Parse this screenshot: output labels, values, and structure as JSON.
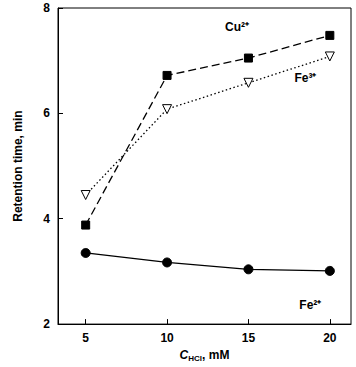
{
  "chart_data": {
    "type": "line",
    "xlabel": "CHCl, mM",
    "ylabel": "Retention time, min",
    "x": [
      5,
      10,
      15,
      20
    ],
    "xlim": [
      3.3,
      21.3
    ],
    "xticks": [
      5,
      10,
      15,
      20
    ],
    "ylim": [
      2,
      8
    ],
    "yticks": [
      2,
      4,
      6,
      8
    ],
    "grid": false,
    "series": [
      {
        "name": "Cu²⁺",
        "color": "#000000",
        "marker": "square",
        "line_style": "dashed",
        "values": [
          3.88,
          6.72,
          7.05,
          7.48
        ]
      },
      {
        "name": "Fe³⁺",
        "color": "#000000",
        "marker": "triangle-down-open",
        "line_style": "dotted",
        "values": [
          4.45,
          6.08,
          6.58,
          7.08
        ]
      },
      {
        "name": "Fe²⁺",
        "color": "#000000",
        "marker": "circle",
        "line_style": "solid",
        "values": [
          3.35,
          3.17,
          3.04,
          3.01
        ]
      }
    ],
    "annotations": [
      {
        "text": "Cu²⁺",
        "x": 14.3,
        "y": 7.64
      },
      {
        "text": "Fe³⁺",
        "x": 18.5,
        "y": 6.67
      },
      {
        "text": "Fe²⁺",
        "x": 18.8,
        "y": 2.36
      }
    ]
  }
}
